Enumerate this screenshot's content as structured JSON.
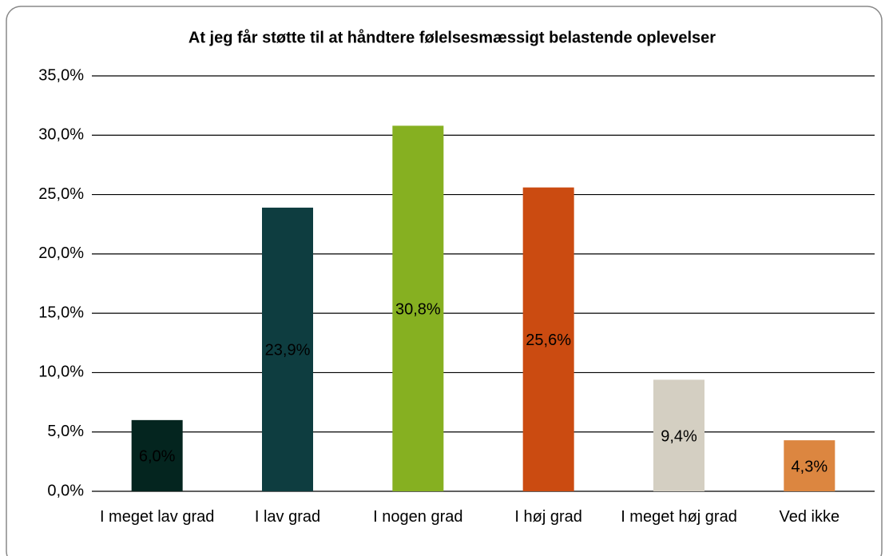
{
  "chart_data": {
    "type": "bar",
    "title": "At jeg får støtte til at håndtere følelsesmæssigt belastende oplevelser",
    "categories": [
      "I meget lav grad",
      "I lav grad",
      "I nogen grad",
      "I høj grad",
      "I meget høj grad",
      "Ved ikke"
    ],
    "values": [
      6.0,
      23.9,
      30.8,
      25.6,
      9.4,
      4.3
    ],
    "value_labels": [
      "6,0%",
      "23,9%",
      "30,8%",
      "25,6%",
      "9,4%",
      "4,3%"
    ],
    "colors": [
      "#04251f",
      "#0e3d40",
      "#86b021",
      "#cb4b11",
      "#d4cfc2",
      "#dc8640"
    ],
    "ylim": [
      0,
      35
    ],
    "yticks": [
      {
        "value": 0,
        "label": "0,0%"
      },
      {
        "value": 5,
        "label": "5,0%"
      },
      {
        "value": 10,
        "label": "10,0%"
      },
      {
        "value": 15,
        "label": "15,0%"
      },
      {
        "value": 20,
        "label": "20,0%"
      },
      {
        "value": 25,
        "label": "25,0%"
      },
      {
        "value": 30,
        "label": "30,0%"
      },
      {
        "value": 35,
        "label": "35,0%"
      }
    ],
    "grid": true
  }
}
